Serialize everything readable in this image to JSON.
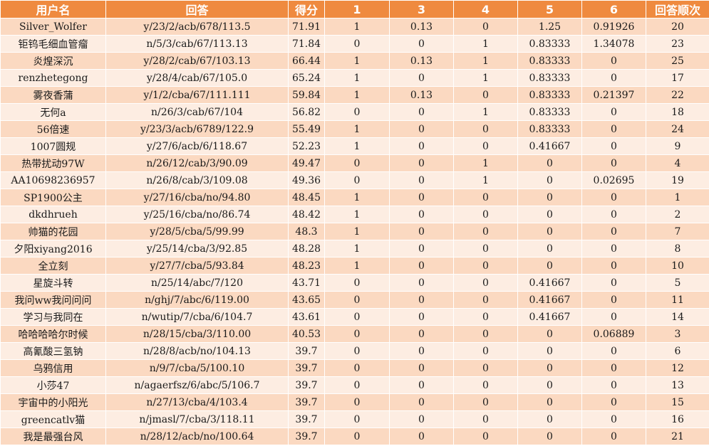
{
  "table": {
    "headers": [
      "用户名",
      "回答",
      "得分",
      "1",
      "3",
      "4",
      "5",
      "6",
      "回答顺次"
    ],
    "rows": [
      [
        "Silver_Wolfer",
        "y/23/2/acb/678/113.5",
        "71.91",
        "1",
        "0.13",
        "0",
        "1.25",
        "0.91926",
        "20"
      ],
      [
        "钜钨毛细血管瘤",
        "n/5/3/cab/67/113.13",
        "71.84",
        "0",
        "0",
        "1",
        "0.83333",
        "1.34078",
        "23"
      ],
      [
        "炎煌深沉",
        "y/28/2/cab/67/103.13",
        "66.44",
        "1",
        "0.13",
        "1",
        "0.83333",
        "0",
        "25"
      ],
      [
        "renzhetegong",
        "y/28/4/cab/67/105.0",
        "65.24",
        "1",
        "0",
        "1",
        "0.83333",
        "0",
        "17"
      ],
      [
        "雾夜香蒲",
        "y/1/2/cba/67/111.111",
        "59.84",
        "1",
        "0.13",
        "0",
        "0.83333",
        "0.21397",
        "22"
      ],
      [
        "无何a",
        "n/26/3/cab/67/104",
        "56.82",
        "0",
        "0",
        "1",
        "0.83333",
        "0",
        "18"
      ],
      [
        "56倍速",
        "y/23/3/acb/6789/122.9",
        "55.49",
        "1",
        "0",
        "0",
        "0.83333",
        "0",
        "24"
      ],
      [
        "1007圆规",
        "y/27/6/acb/6/118.67",
        "52.23",
        "1",
        "0",
        "0",
        "0.41667",
        "0",
        "9"
      ],
      [
        "热带扰动97W",
        "n/26/12/cab/3/90.09",
        "49.47",
        "0",
        "0",
        "1",
        "0",
        "0",
        "4"
      ],
      [
        "AA10698236957",
        "n/26/8/cab/3/109.08",
        "49.36",
        "0",
        "0",
        "1",
        "0",
        "0.02695",
        "19"
      ],
      [
        "SP1900公主",
        "y/27/16/cba/no/94.80",
        "48.45",
        "1",
        "0",
        "0",
        "0",
        "0",
        "1"
      ],
      [
        "dkdhrueh",
        "y/25/16/cba/no/86.74",
        "48.42",
        "1",
        "0",
        "0",
        "0",
        "0",
        "2"
      ],
      [
        "帅猫的花园",
        "y/28/5/cba/5/99.99",
        "48.3",
        "1",
        "0",
        "0",
        "0",
        "0",
        "7"
      ],
      [
        "夕阳xiyang2016",
        "y/25/14/cba/3/92.85",
        "48.28",
        "1",
        "0",
        "0",
        "0",
        "0",
        "8"
      ],
      [
        "全立刻",
        "y/27/7/cba/5/93.84",
        "48.23",
        "1",
        "0",
        "0",
        "0",
        "0",
        "10"
      ],
      [
        "星旋斗转",
        "n/25/14/abc/7/120",
        "43.71",
        "0",
        "0",
        "0",
        "0.41667",
        "0",
        "5"
      ],
      [
        "我问ww我问问问",
        "n/ghj/7/abc/6/119.00",
        "43.65",
        "0",
        "0",
        "0",
        "0.41667",
        "0",
        "11"
      ],
      [
        "学习与我同在",
        "n/wutip/7/cba/6/104.7",
        "43.61",
        "0",
        "0",
        "0",
        "0.41667",
        "0",
        "14"
      ],
      [
        "哈哈哈哈尔时候",
        "n/28/15/cba/3/110.00",
        "40.53",
        "0",
        "0",
        "0",
        "0",
        "0.06889",
        "3"
      ],
      [
        "高氰酸三氢钠",
        "n/28/8/acb/no/104.13",
        "39.7",
        "0",
        "0",
        "0",
        "0",
        "0",
        "6"
      ],
      [
        "乌鸦信用",
        "n/9/7/cba/5/100.10",
        "39.7",
        "0",
        "0",
        "0",
        "0",
        "0",
        "12"
      ],
      [
        "小莎47",
        "n/agaerfsz/6/abc/5/106.7",
        "39.7",
        "0",
        "0",
        "0",
        "0",
        "0",
        "13"
      ],
      [
        "宇宙中的小阳光",
        "n/27/13/cba/4/103.4",
        "39.7",
        "0",
        "0",
        "0",
        "0",
        "0",
        "15"
      ],
      [
        "greencatlv猫",
        "n/jmasl/7/cba/3/118.11",
        "39.7",
        "0",
        "0",
        "0",
        "0",
        "0",
        "16"
      ],
      [
        "我是最强台风",
        "n/28/12/acb/no/100.64",
        "39.7",
        "0",
        "0",
        "0",
        "0",
        "0",
        "21"
      ]
    ]
  },
  "colors": {
    "header_bg": "#ef8a3f",
    "header_text": "#ffffff",
    "row_odd": "#fbd9c1",
    "row_even": "#fdede2"
  }
}
